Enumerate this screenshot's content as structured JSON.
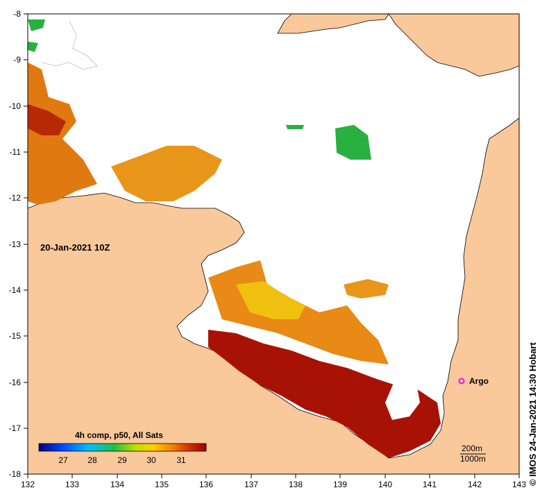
{
  "map": {
    "date_label": "20-Jan-2021 10Z",
    "credit": "© IMOS 24-Jan-2021 14:30 Hobart",
    "x_axis": {
      "min": 132,
      "max": 143,
      "ticks": [
        "132",
        "133",
        "134",
        "135",
        "136",
        "137",
        "138",
        "139",
        "140",
        "141",
        "142",
        "143"
      ]
    },
    "y_axis": {
      "min": -18,
      "max": -8,
      "ticks": [
        "-8",
        "-9",
        "-10",
        "-11",
        "-12",
        "-13",
        "-14",
        "-15",
        "-16",
        "-17",
        "-18"
      ]
    },
    "colorbar": {
      "title": "4h comp, p50, All Sats",
      "ticks": [
        "27",
        "28",
        "29",
        "30",
        "31"
      ],
      "range": [
        26,
        32
      ]
    },
    "marker": {
      "label": "Argo",
      "lon": 141.7,
      "lat": -16.0,
      "color": "#ff00ff"
    },
    "scale": {
      "line1": "200m",
      "line2": "1000m"
    },
    "colors": {
      "land": "#f9c89b",
      "sea": "#ffffff"
    }
  }
}
